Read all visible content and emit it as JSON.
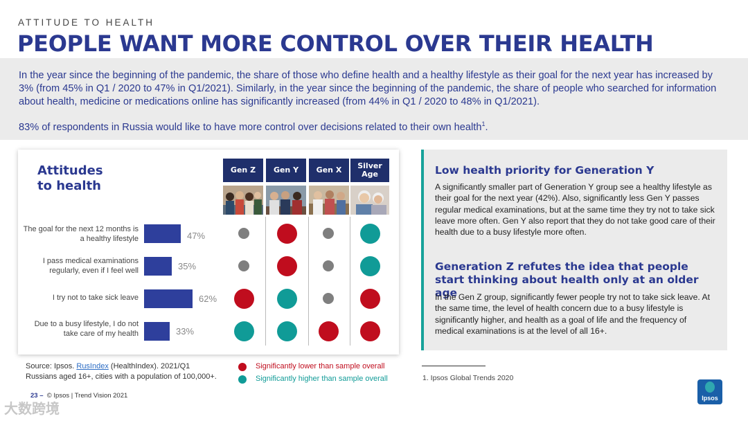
{
  "header": {
    "kicker": "ATTITUDE TO HEALTH",
    "title": "PEOPLE WANT MORE CONTROL OVER THEIR HEALTH"
  },
  "intro": {
    "paragraph1": "In the year since the beginning of the pandemic, the share of those who define health and a healthy lifestyle as their goal for the next year has increased by 3% (from 45% in Q1 / 2020 to 47% in Q1/2021). Similarly, in the year since the beginning of the pandemic, the share of people who searched for information about health, medicine or medications online has significantly increased (from 44% in Q1 / 2020 to 48% in Q1/2021).",
    "paragraph2": "83% of respondents in Russia would like to have more control over decisions related to their own health",
    "paragraph2_sup": "1",
    "paragraph2_end": "."
  },
  "chart_data": {
    "type": "bar",
    "title": "Attitudes to health",
    "title_line1": "Attitudes",
    "title_line2": "to health",
    "categories": [
      "The goal for the next 12 months is a healthy lifestyle",
      "I pass medical examinations regularly, even if I feel well",
      "I try not to take sick leave",
      "Due to a busy lifestyle, I do not take care of my health"
    ],
    "values": [
      47,
      35,
      62,
      33
    ],
    "value_labels": [
      "47%",
      "35%",
      "62%",
      "33%"
    ],
    "generations": [
      "Gen Z",
      "Gen Y",
      "Gen X",
      "Silver Age"
    ],
    "significance": [
      [
        "none",
        "lower",
        "none",
        "higher"
      ],
      [
        "none",
        "lower",
        "none",
        "higher"
      ],
      [
        "lower",
        "higher",
        "none",
        "lower"
      ],
      [
        "higher",
        "higher",
        "lower",
        "lower"
      ]
    ],
    "colors": {
      "bar": "#2e3f9c",
      "lower": "#c00d1e",
      "higher": "#109b97",
      "none": "#7f7f7f"
    }
  },
  "legend": {
    "lower": "Significantly lower than sample overall",
    "higher": "Significantly higher than sample overall"
  },
  "source": {
    "prefix": "Source: Ipsos. ",
    "link": "RusIndex",
    "suffix": " (HealthIndex). 2021/Q1",
    "line2": "Russians aged 16+, cities with a population of 100,000+."
  },
  "footer": {
    "page": "23 –",
    "text": "© Ipsos | Trend Vision 2021"
  },
  "right_panel": {
    "heading1": "Low health priority for Generation Y",
    "text1": "A significantly smaller part of Generation Y group see a healthy lifestyle as their goal for the next year (42%). Also, significantly less Gen Y passes regular medical examinations, but at the same time they try not to take sick leave more often. Gen Y also report that they do not take good care of their health due to a busy lifestyle more often.",
    "heading2": "Generation Z refutes the idea that people start thinking about health only at an older age",
    "text2": "In the Gen Z group, significantly fewer people try not to take sick leave. At the same time, the level of health concern due to a busy lifestyle is significantly higher, and health as a goal of life and the frequency of medical examinations is at the level of all 16+."
  },
  "footnote": "1. Ipsos Global Trends 2020",
  "logo": "Ipsos",
  "watermark": "大数跨境"
}
